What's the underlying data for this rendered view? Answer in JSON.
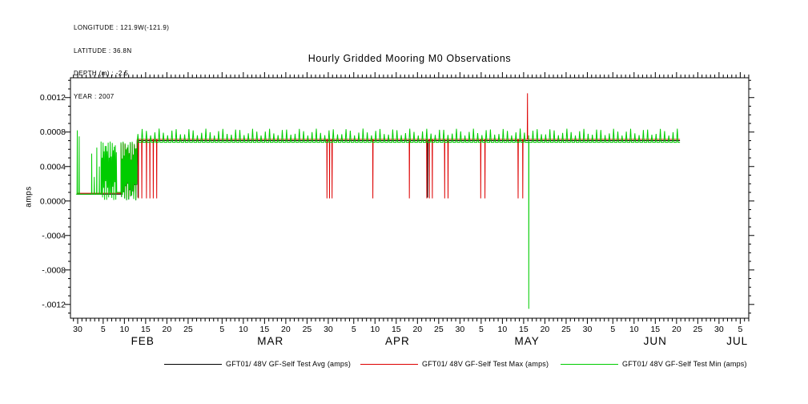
{
  "meta": {
    "lines": [
      "LONGITUDE : 121.9W(-121.9)",
      "LATITUDE : 36.8N",
      "DEPTH (m) : -2.5",
      "YEAR : 2007"
    ]
  },
  "chart_data": {
    "type": "line",
    "title": "Hourly Gridded Mooring M0 Observations",
    "ylabel": "amps",
    "ylim": [
      -0.00136,
      0.00143
    ],
    "yticks": [
      0.0012,
      0.0008,
      0.0004,
      0,
      -0.0004,
      -0.0008,
      -0.0012
    ],
    "ytick_labels": [
      "0.0012",
      "0.0008",
      "0.0004",
      "0.0000",
      "-.0004",
      "-.0008",
      "-.0012"
    ],
    "grid": false,
    "legend_position": "bottom",
    "x_axis": {
      "unit": "day-of-year-2007",
      "range": [
        28.3,
        188
      ],
      "minor_tick_every_days": 1,
      "major_tick_every_days": 5,
      "first_day_label": "30",
      "month_labels": [
        {
          "label": "FEB",
          "day": 45.3
        },
        {
          "label": "MAR",
          "day": 75.4
        },
        {
          "label": "APR",
          "day": 105.3
        },
        {
          "label": "MAY",
          "day": 135.8
        },
        {
          "label": "JUN",
          "day": 166.0
        },
        {
          "label": "JUL",
          "day": 185.3
        }
      ]
    },
    "series": [
      {
        "name": "GFT01/ 48V GF-Self Test Avg (amps)",
        "color": "#000000",
        "segments": [
          {
            "from": 29.8,
            "to": 40.2,
            "value": 8e-05
          },
          {
            "from": 40.2,
            "to": 44.0,
            "pattern": "noise",
            "value": 0.00034,
            "amp": 0.00033
          },
          {
            "from": 44.0,
            "to": 171.8,
            "value": 0.0007
          }
        ],
        "spikes": [
          {
            "d": 44.2,
            "v": 4e-05
          },
          {
            "d": 112.4,
            "v": 4e-05
          }
        ]
      },
      {
        "name": "GFT01/ 48V GF-Self Test Max (amps)",
        "color": "#dd0000",
        "segments": [
          {
            "from": 29.8,
            "to": 40.2,
            "value": 9e-05
          },
          {
            "from": 40.2,
            "to": 44.0,
            "pattern": "noise",
            "value": 0.00036,
            "amp": 0.00032
          },
          {
            "from": 44.0,
            "to": 171.8,
            "value": 0.000715
          }
        ],
        "spikes": [
          {
            "d": 44.3,
            "v": 3e-05
          },
          {
            "d": 45.1,
            "v": 3e-05
          },
          {
            "d": 46.2,
            "v": 3e-05
          },
          {
            "d": 47.0,
            "v": 3e-05
          },
          {
            "d": 47.8,
            "v": 3e-05
          },
          {
            "d": 48.6,
            "v": 3e-05
          },
          {
            "d": 88.7,
            "v": 3e-05
          },
          {
            "d": 89.3,
            "v": 3e-05
          },
          {
            "d": 89.9,
            "v": 3e-05
          },
          {
            "d": 99.5,
            "v": 3e-05
          },
          {
            "d": 108.1,
            "v": 3e-05
          },
          {
            "d": 112.2,
            "v": 3e-05
          },
          {
            "d": 112.8,
            "v": 3e-05
          },
          {
            "d": 113.5,
            "v": 3e-05
          },
          {
            "d": 116.4,
            "v": 3e-05
          },
          {
            "d": 117.2,
            "v": 3e-05
          },
          {
            "d": 124.9,
            "v": 3e-05
          },
          {
            "d": 125.9,
            "v": 3e-05
          },
          {
            "d": 133.7,
            "v": 3e-05
          },
          {
            "d": 134.8,
            "v": 3e-05
          },
          {
            "d": 135.9,
            "v": 0.00125
          }
        ]
      },
      {
        "name": "GFT01/ 48V GF-Self Test Min (amps)",
        "color": "#00cc00",
        "segments": [
          {
            "from": 29.6,
            "to": 35.5,
            "value": 8e-05
          },
          {
            "from": 35.5,
            "to": 39.2,
            "pattern": "noise",
            "value": 0.00035,
            "amp": 0.00034
          },
          {
            "from": 39.2,
            "to": 40.2,
            "value": 0.0001
          },
          {
            "from": 40.2,
            "to": 44.0,
            "pattern": "noise",
            "value": 0.00035,
            "amp": 0.00034
          },
          {
            "from": 44.0,
            "to": 171.8,
            "pattern": "peaks",
            "value": 0.00068,
            "peak": 0.0008
          }
        ],
        "spikes": [
          {
            "d": 29.9,
            "v": 0.00082
          },
          {
            "d": 30.35,
            "v": 0.00075
          },
          {
            "d": 33.3,
            "v": 0.00055
          },
          {
            "d": 33.9,
            "v": 0.00028
          },
          {
            "d": 34.5,
            "v": 0.00062
          },
          {
            "d": 35.1,
            "v": 0.0004
          },
          {
            "d": 136.2,
            "v": -0.00125
          }
        ]
      }
    ],
    "legend": [
      {
        "label": "GFT01/ 48V GF-Self Test Avg (amps)",
        "color": "#000000"
      },
      {
        "label": "GFT01/ 48V GF-Self Test Max (amps)",
        "color": "#dd0000"
      },
      {
        "label": "GFT01/ 48V GF-Self Test Min (amps)",
        "color": "#00cc00"
      }
    ]
  }
}
